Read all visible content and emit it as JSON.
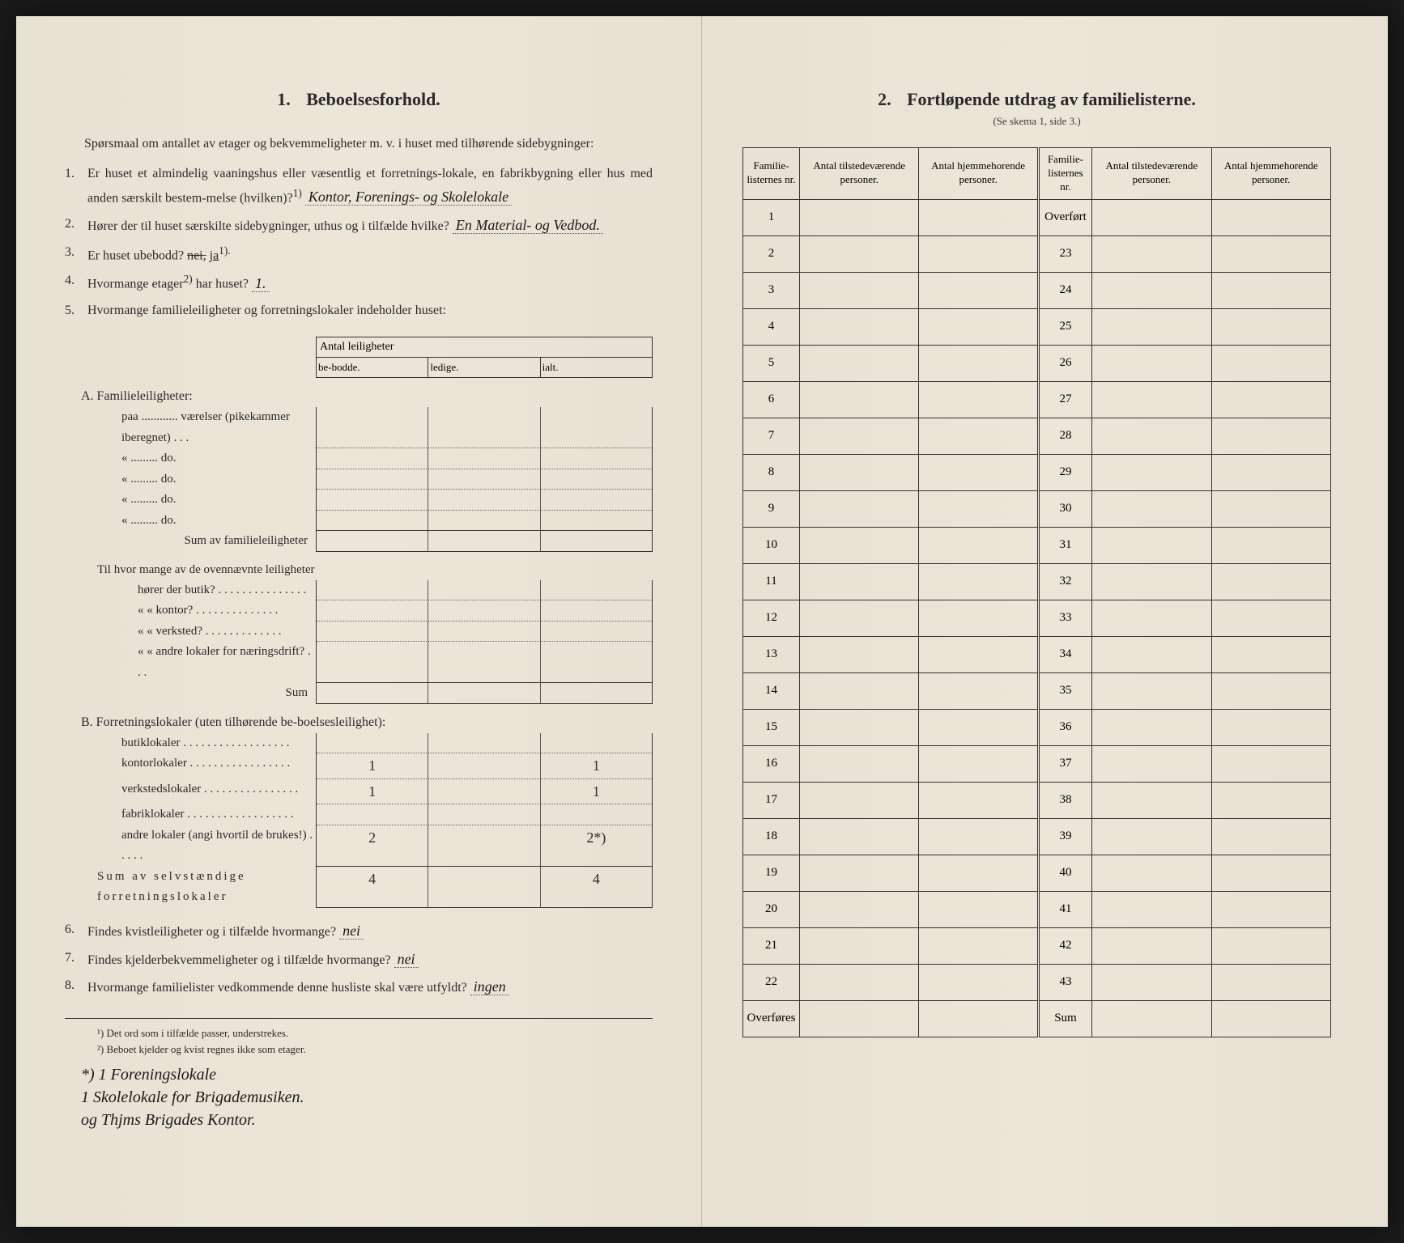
{
  "left": {
    "section_num": "1.",
    "section_title": "Beboelsesforhold.",
    "intro": "Spørsmaal om antallet av etager og bekvemmeligheter m. v. i huset med tilhørende sidebygninger:",
    "q1": {
      "num": "1.",
      "text_a": "Er huset et almindelig vaaningshus eller væsentlig et forretnings-lokale, en fabrikbygning eller hus med anden særskilt bestem-melse (hvilken)?",
      "sup": "1)",
      "answer": "Kontor, Forenings- og Skolelokale"
    },
    "q2": {
      "num": "2.",
      "text": "Hører der til huset særskilte sidebygninger, uthus og i tilfælde hvilke?",
      "answer": "En Material- og Vedbod."
    },
    "q3": {
      "num": "3.",
      "text": "Er huset ubebodd?",
      "struck": "nei,",
      "answer": "ja",
      "sup": "1)."
    },
    "q4": {
      "num": "4.",
      "text": "Hvormange etager",
      "sup": "2)",
      "text2": " har huset?",
      "answer": "1."
    },
    "q5": {
      "num": "5.",
      "text": "Hvormange familieleiligheter og forretningslokaler indeholder huset:",
      "antal_header": "Antal leiligheter",
      "col1": "be-bodde.",
      "col2": "ledige.",
      "col3": "ialt.",
      "sectionA": "A. Familieleiligheter:",
      "rowA1": "paa ............ værelser (pikekammer iberegnet)  .  .  .",
      "rowA2": "«    .........   do.",
      "sumA": "Sum av familieleiligheter",
      "mid_intro": "Til hvor mange av de ovennævnte leiligheter",
      "mid1": "hører der butik? . . . . . . . . . . . . . . .",
      "mid2": "«    «   kontor? . . . . . . . . . . . . . .",
      "mid3": "«    «   verksted? . . . . . . . . . . . . .",
      "mid4": "«    «   andre lokaler for næringsdrift? . . .",
      "midSum": "Sum",
      "sectionB": "B. Forretningslokaler (uten tilhørende be-boelsesleilighet):",
      "rowB1": "butiklokaler . . . . . . . . . . . . . . . . . .",
      "rowB2": "kontorlokaler  . . . . . . . . . . . . . . . . .",
      "rowB3": "verkstedslokaler . . . . . . . . . . . . . . . .",
      "rowB4": "fabriklokaler . . . . . . . . . . . . . . . . . .",
      "rowB5": "andre lokaler (angi hvortil de brukes!) . . . . .",
      "sumB": "Sum av selvstændige forretningslokaler",
      "valB2_1": "1",
      "valB2_3": "1",
      "valB3_1": "1",
      "valB3_3": "1",
      "valB5_1": "2",
      "valB5_3": "2*)",
      "valSum_1": "4",
      "valSum_3": "4"
    },
    "q6": {
      "num": "6.",
      "text": "Findes kvistleiligheter og i tilfælde hvormange?",
      "answer": "nei"
    },
    "q7": {
      "num": "7.",
      "text": "Findes kjelderbekvemmeligheter og i tilfælde hvormange?",
      "answer": "nei"
    },
    "q8": {
      "num": "8.",
      "text": "Hvormange familielister vedkommende denne husliste skal være utfyldt?",
      "answer": "ingen"
    },
    "footnote1": "¹) Det ord som i tilfælde passer, understrekes.",
    "footnote2": "²) Beboet kjelder og kvist regnes ikke som etager.",
    "margin_note": "*) 1 Foreningslokale\n1 Skolelokale for Brigademusiken.\nog Thjms Brigades Kontor."
  },
  "right": {
    "section_num": "2.",
    "section_title": "Fortløpende utdrag av familielisterne.",
    "subtitle": "(Se skema 1, side 3.)",
    "headers": {
      "nr": "Familie-listernes nr.",
      "tilstede": "Antal tilstedeværende personer.",
      "hjemme": "Antal hjemmehorende personer."
    },
    "overfort": "Overført",
    "overfores": "Overføres",
    "sum": "Sum",
    "rows_left": [
      "1",
      "2",
      "3",
      "4",
      "5",
      "6",
      "7",
      "8",
      "9",
      "10",
      "11",
      "12",
      "13",
      "14",
      "15",
      "16",
      "17",
      "18",
      "19",
      "20",
      "21",
      "22"
    ],
    "rows_right": [
      "23",
      "24",
      "25",
      "26",
      "27",
      "28",
      "29",
      "30",
      "31",
      "32",
      "33",
      "34",
      "35",
      "36",
      "37",
      "38",
      "39",
      "40",
      "41",
      "42",
      "43"
    ]
  },
  "colors": {
    "paper": "#e8e3d5",
    "text": "#2a2a2a",
    "ink": "#1a1a1a",
    "border": "#333333"
  }
}
